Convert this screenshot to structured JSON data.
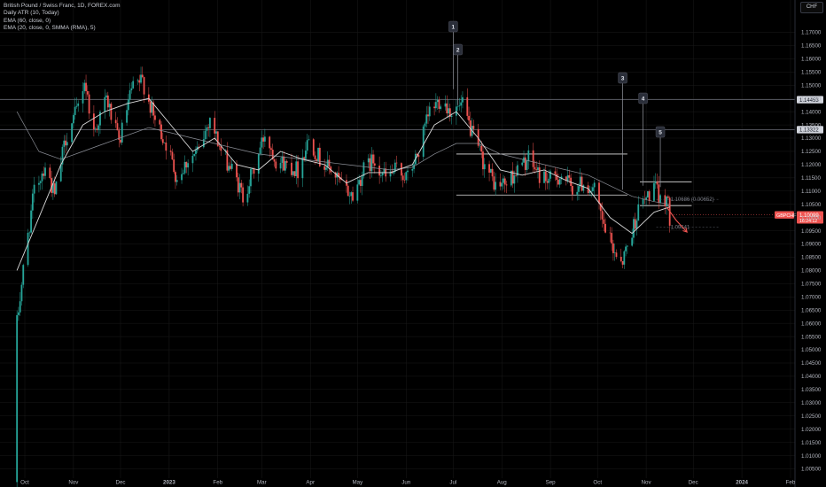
{
  "legend": {
    "symbol": "British Pound / Swiss Franc, 1D, FOREX.com",
    "ind1": "Daily ATR (10, Today)",
    "ind2": "EMA (60, close, 0)",
    "ind3": "EMA (20, close, 0, SMMA (RMA), 5)"
  },
  "currency_label": "CHF",
  "colors": {
    "up": "#26a69a",
    "down": "#ef5350",
    "bg": "#000000",
    "grid": "#1a1a1a",
    "text": "#b2b5be",
    "line": "#d1d4dc"
  },
  "chart_data": {
    "type": "candlestick",
    "y_axis": {
      "min": 1.0,
      "max": 1.18,
      "step": 0.005,
      "ticks": [
        "1.17000",
        "1.16500",
        "1.16000",
        "1.15500",
        "1.15000",
        "1.14500",
        "1.14000",
        "1.13500",
        "1.13000",
        "1.12500",
        "1.12000",
        "1.11500",
        "1.11000",
        "1.10500",
        "1.10000",
        "1.09500",
        "1.09000",
        "1.08500",
        "1.08000",
        "1.07500",
        "1.07000",
        "1.06500",
        "1.06000",
        "1.05500",
        "1.05000",
        "1.04500",
        "1.04000",
        "1.03500",
        "1.03000",
        "1.02500",
        "1.02000",
        "1.01500",
        "1.01000",
        "1.00500"
      ]
    },
    "x_axis": {
      "labels": [
        {
          "label": "Oct",
          "date": "2022-10-01"
        },
        {
          "label": "Nov",
          "date": "2022-11-01"
        },
        {
          "label": "Dec",
          "date": "2022-12-01"
        },
        {
          "label": "2023",
          "date": "2023-01-01"
        },
        {
          "label": "Feb",
          "date": "2023-02-01"
        },
        {
          "label": "Mar",
          "date": "2023-03-01"
        },
        {
          "label": "Apr",
          "date": "2023-04-01"
        },
        {
          "label": "May",
          "date": "2023-05-01"
        },
        {
          "label": "Jun",
          "date": "2023-06-01"
        },
        {
          "label": "Jul",
          "date": "2023-07-01"
        },
        {
          "label": "Aug",
          "date": "2023-08-01"
        },
        {
          "label": "Sep",
          "date": "2023-09-01"
        },
        {
          "label": "Oct",
          "date": "2023-10-01"
        },
        {
          "label": "Nov",
          "date": "2023-11-01"
        },
        {
          "label": "Dec",
          "date": "2023-12-01"
        },
        {
          "label": "2024",
          "date": "2024-01-01"
        },
        {
          "label": "Feb",
          "date": "2024-02-01"
        }
      ]
    },
    "price_path": [
      [
        "2022-09-26",
        1.06
      ],
      [
        "2022-10-01",
        1.085
      ],
      [
        "2022-10-07",
        1.11
      ],
      [
        "2022-10-14",
        1.12
      ],
      [
        "2022-10-20",
        1.108
      ],
      [
        "2022-10-27",
        1.13
      ],
      [
        "2022-11-03",
        1.14
      ],
      [
        "2022-11-08",
        1.152
      ],
      [
        "2022-11-14",
        1.132
      ],
      [
        "2022-11-22",
        1.145
      ],
      [
        "2022-11-30",
        1.128
      ],
      [
        "2022-12-08",
        1.148
      ],
      [
        "2022-12-15",
        1.152
      ],
      [
        "2022-12-22",
        1.138
      ],
      [
        "2022-12-30",
        1.128
      ],
      [
        "2023-01-06",
        1.115
      ],
      [
        "2023-01-13",
        1.122
      ],
      [
        "2023-01-20",
        1.125
      ],
      [
        "2023-01-27",
        1.138
      ],
      [
        "2023-02-03",
        1.125
      ],
      [
        "2023-02-10",
        1.118
      ],
      [
        "2023-02-17",
        1.108
      ],
      [
        "2023-02-24",
        1.118
      ],
      [
        "2023-03-03",
        1.132
      ],
      [
        "2023-03-10",
        1.122
      ],
      [
        "2023-03-17",
        1.12
      ],
      [
        "2023-03-24",
        1.118
      ],
      [
        "2023-03-31",
        1.13
      ],
      [
        "2023-04-07",
        1.122
      ],
      [
        "2023-04-14",
        1.118
      ],
      [
        "2023-04-21",
        1.112
      ],
      [
        "2023-04-28",
        1.108
      ],
      [
        "2023-05-05",
        1.118
      ],
      [
        "2023-05-12",
        1.122
      ],
      [
        "2023-05-19",
        1.115
      ],
      [
        "2023-05-26",
        1.118
      ],
      [
        "2023-06-02",
        1.115
      ],
      [
        "2023-06-09",
        1.125
      ],
      [
        "2023-06-16",
        1.14
      ],
      [
        "2023-06-23",
        1.145
      ],
      [
        "2023-06-30",
        1.14
      ],
      [
        "2023-07-07",
        1.142
      ],
      [
        "2023-07-14",
        1.13
      ],
      [
        "2023-07-21",
        1.12
      ],
      [
        "2023-07-28",
        1.112
      ],
      [
        "2023-08-04",
        1.113
      ],
      [
        "2023-08-11",
        1.118
      ],
      [
        "2023-08-18",
        1.122
      ],
      [
        "2023-08-25",
        1.116
      ],
      [
        "2023-09-01",
        1.114
      ],
      [
        "2023-09-08",
        1.116
      ],
      [
        "2023-09-15",
        1.111
      ],
      [
        "2023-09-22",
        1.113
      ],
      [
        "2023-09-29",
        1.11
      ],
      [
        "2023-10-04",
        1.098
      ],
      [
        "2023-10-11",
        1.088
      ],
      [
        "2023-10-17",
        1.084
      ],
      [
        "2023-10-23",
        1.095
      ],
      [
        "2023-10-27",
        1.103
      ],
      [
        "2023-11-02",
        1.108
      ],
      [
        "2023-11-06",
        1.112
      ],
      [
        "2023-11-10",
        1.106
      ],
      [
        "2023-11-14",
        1.108
      ],
      [
        "2023-11-16",
        1.1
      ]
    ],
    "ema_fast": [
      [
        "2022-09-26",
        1.08
      ],
      [
        "2022-10-10",
        1.1
      ],
      [
        "2022-10-24",
        1.12
      ],
      [
        "2022-11-07",
        1.135
      ],
      [
        "2022-11-21",
        1.14
      ],
      [
        "2022-12-05",
        1.143
      ],
      [
        "2022-12-19",
        1.145
      ],
      [
        "2023-01-02",
        1.135
      ],
      [
        "2023-01-16",
        1.125
      ],
      [
        "2023-01-30",
        1.13
      ],
      [
        "2023-02-13",
        1.12
      ],
      [
        "2023-02-27",
        1.118
      ],
      [
        "2023-03-13",
        1.125
      ],
      [
        "2023-03-27",
        1.122
      ],
      [
        "2023-04-10",
        1.12
      ],
      [
        "2023-04-24",
        1.113
      ],
      [
        "2023-05-08",
        1.117
      ],
      [
        "2023-05-22",
        1.117
      ],
      [
        "2023-06-05",
        1.12
      ],
      [
        "2023-06-19",
        1.135
      ],
      [
        "2023-07-03",
        1.14
      ],
      [
        "2023-07-17",
        1.13
      ],
      [
        "2023-07-31",
        1.118
      ],
      [
        "2023-08-14",
        1.116
      ],
      [
        "2023-08-28",
        1.118
      ],
      [
        "2023-09-11",
        1.114
      ],
      [
        "2023-09-25",
        1.111
      ],
      [
        "2023-10-09",
        1.1
      ],
      [
        "2023-10-23",
        1.094
      ],
      [
        "2023-11-06",
        1.102
      ],
      [
        "2023-11-16",
        1.104
      ]
    ],
    "ema_slow": [
      [
        "2022-09-26",
        1.14
      ],
      [
        "2022-10-10",
        1.125
      ],
      [
        "2022-10-24",
        1.122
      ],
      [
        "2022-11-07",
        1.125
      ],
      [
        "2022-11-21",
        1.128
      ],
      [
        "2022-12-05",
        1.131
      ],
      [
        "2022-12-19",
        1.134
      ],
      [
        "2023-01-02",
        1.132
      ],
      [
        "2023-01-16",
        1.13
      ],
      [
        "2023-01-30",
        1.128
      ],
      [
        "2023-02-13",
        1.126
      ],
      [
        "2023-02-27",
        1.124
      ],
      [
        "2023-03-13",
        1.123
      ],
      [
        "2023-03-27",
        1.122
      ],
      [
        "2023-04-10",
        1.121
      ],
      [
        "2023-04-24",
        1.12
      ],
      [
        "2023-05-08",
        1.119
      ],
      [
        "2023-05-22",
        1.118
      ],
      [
        "2023-06-05",
        1.119
      ],
      [
        "2023-06-19",
        1.124
      ],
      [
        "2023-07-03",
        1.128
      ],
      [
        "2023-07-17",
        1.128
      ],
      [
        "2023-07-31",
        1.124
      ],
      [
        "2023-08-14",
        1.122
      ],
      [
        "2023-08-28",
        1.12
      ],
      [
        "2023-09-11",
        1.118
      ],
      [
        "2023-09-25",
        1.116
      ],
      [
        "2023-10-09",
        1.112
      ],
      [
        "2023-10-23",
        1.108
      ],
      [
        "2023-11-06",
        1.106
      ],
      [
        "2023-11-16",
        1.105
      ]
    ],
    "horizontal_levels": [
      {
        "price": 1.14453,
        "label": "1.14453"
      },
      {
        "price": 1.13322,
        "label": "1.13322"
      }
    ],
    "ranges": [
      {
        "start": "2023-07-03",
        "end": "2023-10-20",
        "top": 1.124,
        "bottom": 1.1085
      },
      {
        "start": "2023-10-28",
        "end": "2023-11-30",
        "top": 1.1135,
        "bottom": 1.1045
      }
    ],
    "markers": [
      {
        "label": "1",
        "date": "2023-07-01",
        "price": 1.1485
      },
      {
        "label": "2",
        "date": "2023-07-04",
        "price": 1.1425
      },
      {
        "label": "3",
        "date": "2023-10-17",
        "price": 1.1105
      },
      {
        "label": "4",
        "date": "2023-10-30",
        "price": 1.112
      },
      {
        "label": "5",
        "date": "2023-11-10",
        "price": 1.1115
      }
    ],
    "annotations": [
      {
        "text": "1.10686 (0.00652)",
        "date": "2023-11-12",
        "price": 1.10686
      },
      {
        "text": "1.09641",
        "date": "2023-11-12",
        "price": 1.09641
      }
    ],
    "projection": [
      [
        "2023-11-14",
        1.104
      ],
      [
        "2023-11-20",
        1.099
      ],
      [
        "2023-11-27",
        1.0945
      ]
    ],
    "current_price": {
      "symbol": "GBPCHF",
      "price": "1.10099",
      "countdown": "16:24:12",
      "value": 1.10099
    }
  }
}
